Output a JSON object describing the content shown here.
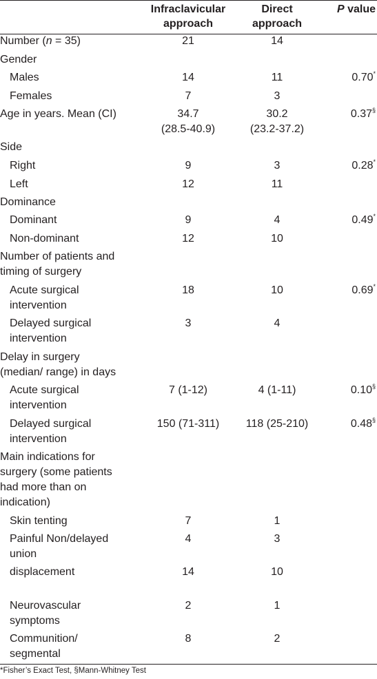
{
  "header": {
    "col2": [
      "Infraclavicular",
      "approach"
    ],
    "col3": [
      "Direct",
      "approach"
    ],
    "col4_italic": "P",
    "col4_rest": " value"
  },
  "rows": {
    "number": {
      "label_pre": "Number (",
      "label_n": "n",
      "label_post": " = 35)",
      "infra": "21",
      "direct": "14"
    },
    "gender": {
      "label": "Gender"
    },
    "males": {
      "label": "Males",
      "infra": "14",
      "direct": "11",
      "p": "0.70",
      "mark": "*"
    },
    "females": {
      "label": "Females",
      "infra": "7",
      "direct": "3"
    },
    "age": {
      "label": "Age in years. Mean (CI)",
      "infra1": "34.7",
      "infra2": "(28.5-40.9)",
      "direct1": "30.2",
      "direct2": "(23.2-37.2)",
      "p": "0.37",
      "mark": "§"
    },
    "side": {
      "label": "Side"
    },
    "right": {
      "label": "Right",
      "infra": "9",
      "direct": "3",
      "p": "0.28",
      "mark": "*"
    },
    "left": {
      "label": "Left",
      "infra": "12",
      "direct": "11"
    },
    "dominance": {
      "label": "Dominance"
    },
    "dominant": {
      "label": "Dominant",
      "infra": "9",
      "direct": "4",
      "p": "0.49",
      "mark": "*"
    },
    "nondominant": {
      "label": "Non-dominant",
      "infra": "12",
      "direct": "10"
    },
    "timing": {
      "label1": "Number of patients and",
      "label2": "timing of surgery"
    },
    "acute1": {
      "label1": "Acute surgical",
      "label2": "intervention",
      "infra": "18",
      "direct": "10",
      "p": "0.69",
      "mark": "*"
    },
    "delayed1": {
      "label1": "Delayed surgical",
      "label2": "intervention",
      "infra": "3",
      "direct": "4"
    },
    "delay": {
      "label1": "Delay in surgery",
      "label2": "(median/ range) in days"
    },
    "acute2": {
      "label1": "Acute surgical",
      "label2": "intervention",
      "infra": "7 (1-12)",
      "direct": "4 (1-11)",
      "p": "0.10",
      "mark": "§"
    },
    "delayed2": {
      "label1": "Delayed surgical",
      "label2": "intervention",
      "infra": "150 (71-311)",
      "direct": "118 (25-210)",
      "p": "0.48",
      "mark": "§"
    },
    "indications": {
      "label1": "Main indications for",
      "label2": "surgery (some patients",
      "label3": "had more than on",
      "label4": "indication)"
    },
    "skin": {
      "label": "Skin tenting",
      "infra": "7",
      "direct": "1"
    },
    "painful": {
      "label1": "Painful Non/delayed",
      "label2": "union",
      "infra": "4",
      "direct": "3"
    },
    "displacement": {
      "label": "displacement",
      "infra": "14",
      "direct": "10"
    },
    "neuro": {
      "label1": "Neurovascular",
      "label2": "symptoms",
      "infra": "2",
      "direct": "1"
    },
    "comm": {
      "label1": "Communition/",
      "label2": "segmental",
      "infra": "8",
      "direct": "2"
    }
  },
  "footnote": "*Fisher’s Exact Test, §Mann-Whitney Test"
}
